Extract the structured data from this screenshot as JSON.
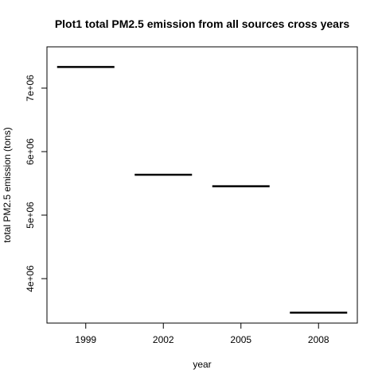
{
  "chart_data": {
    "type": "step",
    "title": "Plot1 total PM2.5 emission from all sources cross years",
    "xlabel": "year",
    "ylabel": "total PM2.5 emission (tons)",
    "x": [
      "1999",
      "2002",
      "2005",
      "2008"
    ],
    "values": [
      7332967,
      5635780,
      5454703,
      3464206
    ],
    "y_ticks": [
      4000000,
      5000000,
      6000000,
      7000000
    ],
    "y_tick_labels": [
      "4e+06",
      "5e+06",
      "6e+06",
      "7e+06"
    ],
    "ylim": [
      3300000,
      7650000
    ],
    "grid": false,
    "line_color": "#000000"
  }
}
